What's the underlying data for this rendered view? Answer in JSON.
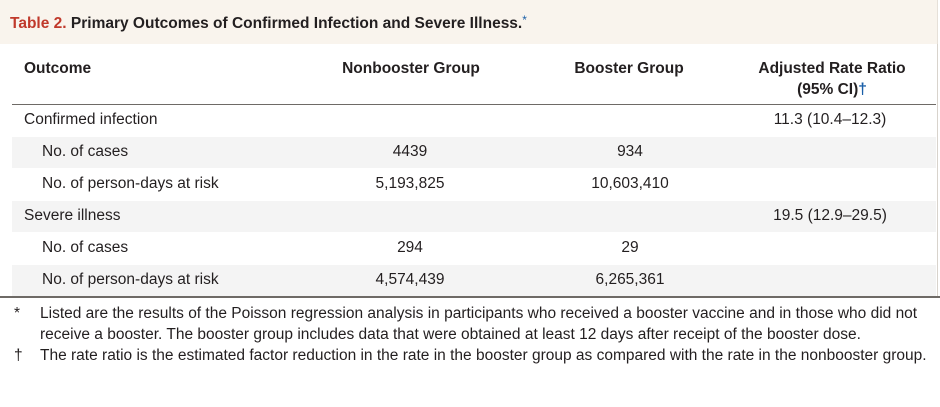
{
  "table": {
    "label": "Table 2.",
    "title": "Primary Outcomes of Confirmed Infection and Severe Illness.",
    "title_mark": "*",
    "headers": {
      "outcome": "Outcome",
      "nonbooster": "Nonbooster Group",
      "booster": "Booster Group",
      "rate_ratio_line1": "Adjusted Rate Ratio",
      "rate_ratio_line2": "(95% CI)",
      "rate_ratio_mark": "†"
    },
    "rows": [
      {
        "label": "Confirmed infection",
        "nonbooster": "",
        "booster": "",
        "rate_ratio": "11.3 (10.4–12.3)"
      },
      {
        "label": "No. of cases",
        "nonbooster": "4439",
        "booster": "934",
        "rate_ratio": ""
      },
      {
        "label": "No. of person-days at risk",
        "nonbooster": "5,193,825",
        "booster": "10,603,410",
        "rate_ratio": ""
      },
      {
        "label": "Severe illness",
        "nonbooster": "",
        "booster": "",
        "rate_ratio": "19.5 (12.9–29.5)"
      },
      {
        "label": "No. of cases",
        "nonbooster": "294",
        "booster": "29",
        "rate_ratio": ""
      },
      {
        "label": "No. of person-days at risk",
        "nonbooster": "4,574,439",
        "booster": "6,265,361",
        "rate_ratio": ""
      }
    ]
  },
  "footnotes": [
    {
      "symbol": "*",
      "text": "Listed are the results of the Poisson regression analysis in participants who received a booster vaccine and in those who did not receive a booster. The booster group includes data that were obtained at least 12 days after receipt of the booster dose."
    },
    {
      "symbol": "†",
      "text": "The rate ratio is the estimated factor reduction in the rate in the booster group as compared with the rate in the nonbooster group."
    }
  ],
  "colors": {
    "label": "#c0392b",
    "mark": "#1a5fa8",
    "title_background": "#f9f4ed",
    "row_shade": "#f4f4f4"
  }
}
